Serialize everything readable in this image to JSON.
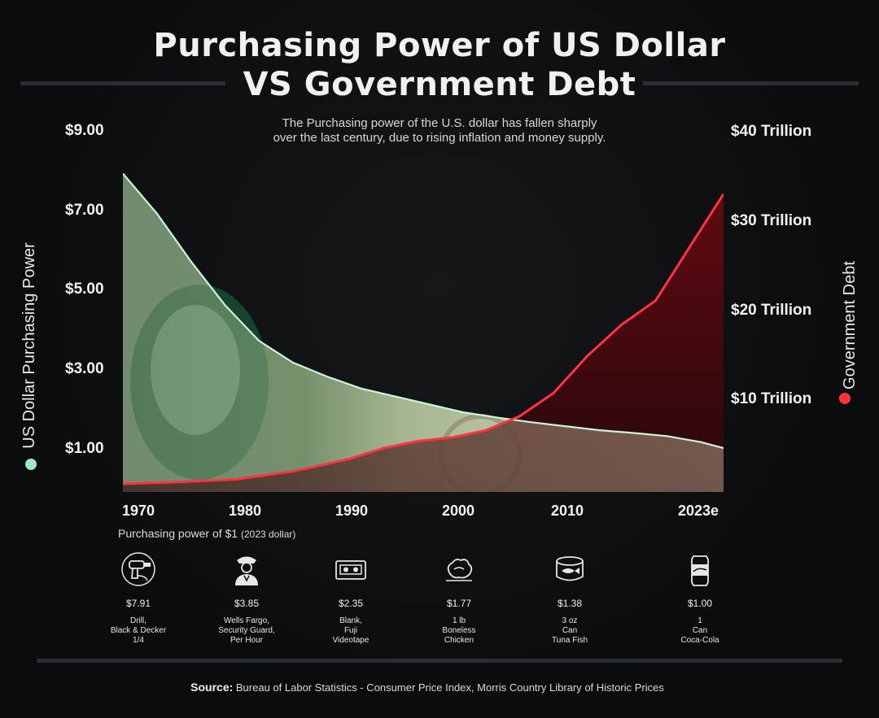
{
  "title_line1": "Purchasing Power of US Dollar",
  "title_line2": "VS Government Debt",
  "subtitle_line1": "The Purchasing power  of the U.S. dollar has fallen sharply",
  "subtitle_line2": "over the last century, due to rising inflation and money supply.",
  "colors": {
    "purchasing_power": "#9fe8c0",
    "government_debt": "#ff3340"
  },
  "chart_data": {
    "type": "area",
    "x_ticks": [
      "1970",
      "1980",
      "1990",
      "2000",
      "2010",
      "2023e"
    ],
    "left_axis": {
      "label": "US Dollar Purchasing Power",
      "ticks": [
        "$9.00",
        "$7.00",
        "$5.00",
        "$3.00",
        "$1.00"
      ],
      "range": [
        -0.1,
        9.0
      ]
    },
    "right_axis": {
      "label": "Government Debt",
      "ticks": [
        "$40 Trillion",
        "$30 Trillion",
        "$20 Trillion",
        "$10 Trillion"
      ],
      "range": [
        0,
        40
      ]
    },
    "series": [
      {
        "name": "US Dollar Purchasing Power",
        "x": [
          1970,
          1973,
          1976,
          1979,
          1982,
          1985,
          1988,
          1991,
          1994,
          1997,
          2000,
          2003,
          2006,
          2009,
          2012,
          2015,
          2018,
          2021,
          2023
        ],
        "values": [
          7.91,
          6.9,
          5.7,
          4.6,
          3.7,
          3.15,
          2.8,
          2.5,
          2.3,
          2.1,
          1.9,
          1.77,
          1.65,
          1.55,
          1.45,
          1.38,
          1.3,
          1.15,
          1.0
        ]
      },
      {
        "name": "Government Debt",
        "x": [
          1970,
          1975,
          1980,
          1985,
          1990,
          1993,
          1996,
          1999,
          2002,
          2005,
          2008,
          2011,
          2014,
          2017,
          2020,
          2023
        ],
        "values": [
          0.4,
          0.6,
          0.9,
          1.8,
          3.2,
          4.4,
          5.2,
          5.6,
          6.4,
          8.0,
          10.6,
          14.8,
          18.3,
          21.0,
          27.0,
          33.0
        ]
      }
    ]
  },
  "purchasing_label_main": "Purchasing power of $1",
  "purchasing_label_small": "(2023 dollar)",
  "items": [
    {
      "icon": "drill-icon",
      "price": "$7.91",
      "desc": "Drill,\nBlack & Decker\n1/4"
    },
    {
      "icon": "security-guard-icon",
      "price": "$3.85",
      "desc": "Wells Fargo,\nSecurity Guard,\nPer Hour"
    },
    {
      "icon": "videotape-icon",
      "price": "$2.35",
      "desc": "Blank,\nFuji\nVideotape"
    },
    {
      "icon": "chicken-icon",
      "price": "$1.77",
      "desc": "1 lb\nBoneless\nChicken"
    },
    {
      "icon": "tuna-can-icon",
      "price": "$1.38",
      "desc": "3 oz\nCan\nTuna Fish"
    },
    {
      "icon": "coca-cola-can-icon",
      "price": "$1.00",
      "desc": "1\nCan\nCoca-Cola"
    }
  ],
  "source_label": "Source:",
  "source_text": "Bureau of Labor Statistics - Consumer Price Index, Morris Country Library of Historic Prices"
}
